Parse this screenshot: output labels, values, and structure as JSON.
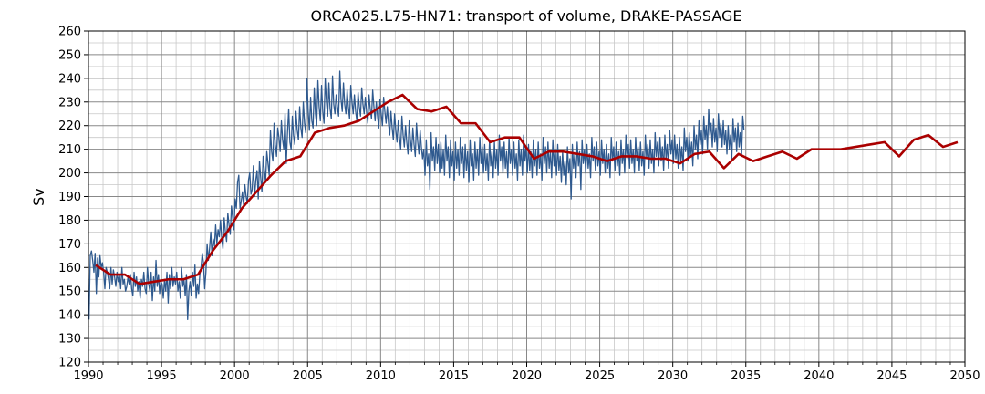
{
  "chart_data": {
    "type": "line",
    "title": "ORCA025.L75-HN71: transport of volume, DRAKE-PASSAGE",
    "xlabel": "",
    "ylabel": "Sv",
    "xlim": [
      1990,
      2050
    ],
    "ylim": [
      120,
      260
    ],
    "xticks": [
      1990,
      1995,
      2000,
      2005,
      2010,
      2015,
      2020,
      2025,
      2030,
      2035,
      2040,
      2045,
      2050
    ],
    "yticks": [
      120,
      130,
      140,
      150,
      160,
      170,
      180,
      190,
      200,
      210,
      220,
      230,
      240,
      250,
      260
    ],
    "grid": true,
    "legend": "none",
    "colors": {
      "monthly": "#2f5a8f",
      "annual": "#aa0000",
      "grid_major": "#888888",
      "grid_minor": "#c8c8c8"
    },
    "series": [
      {
        "style": "thin",
        "x_start": 1990.04,
        "x_step": 0.0833333,
        "values": [
          138,
          165,
          167,
          163,
          158,
          166,
          149,
          164,
          156,
          165,
          160,
          162,
          158,
          151,
          160,
          158,
          155,
          151,
          160,
          153,
          159,
          156,
          152,
          158,
          154,
          157,
          151,
          160,
          153,
          155,
          150,
          152,
          156,
          153,
          157,
          151,
          148,
          158,
          152,
          156,
          150,
          154,
          147,
          155,
          152,
          158,
          151,
          149,
          160,
          153,
          150,
          158,
          146,
          156,
          150,
          163,
          152,
          157,
          149,
          154,
          153,
          147,
          155,
          150,
          158,
          145,
          157,
          151,
          160,
          152,
          156,
          153,
          158,
          150,
          154,
          147,
          160,
          152,
          155,
          148,
          157,
          138,
          150,
          154,
          148,
          158,
          152,
          161,
          147,
          153,
          149,
          157,
          160,
          166,
          162,
          151,
          158,
          170,
          163,
          168,
          175,
          165,
          172,
          169,
          178,
          170,
          176,
          173,
          180,
          172,
          168,
          181,
          175,
          171,
          183,
          178,
          174,
          186,
          181,
          176,
          189,
          185,
          196,
          199,
          185,
          188,
          192,
          186,
          195,
          190,
          187,
          197,
          200,
          191,
          193,
          203,
          190,
          197,
          201,
          189,
          205,
          198,
          192,
          207,
          201,
          196,
          209,
          204,
          199,
          218,
          209,
          205,
          221,
          212,
          207,
          219,
          215,
          209,
          222,
          214,
          210,
          225,
          204,
          217,
          227,
          213,
          210,
          224,
          216,
          212,
          226,
          218,
          214,
          228,
          219,
          215,
          230,
          221,
          217,
          240,
          226,
          218,
          232,
          222,
          219,
          236,
          225,
          220,
          239,
          228,
          222,
          237,
          226,
          221,
          240,
          230,
          224,
          238,
          227,
          223,
          241,
          229,
          225,
          233,
          228,
          224,
          243,
          231,
          226,
          238,
          229,
          225,
          235,
          228,
          223,
          237,
          230,
          225,
          233,
          226,
          222,
          234,
          228,
          224,
          236,
          229,
          225,
          232,
          226,
          221,
          233,
          227,
          223,
          235,
          228,
          222,
          230,
          224,
          219,
          231,
          225,
          220,
          232,
          226,
          221,
          228,
          221,
          216,
          226,
          219,
          214,
          225,
          218,
          213,
          222,
          215,
          210,
          224,
          216,
          211,
          220,
          213,
          208,
          222,
          214,
          209,
          219,
          212,
          207,
          221,
          213,
          208,
          218,
          211,
          206,
          210,
          199,
          214,
          203,
          208,
          193,
          217,
          205,
          211,
          201,
          215,
          204,
          212,
          200,
          213,
          202,
          210,
          199,
          216,
          205,
          211,
          198,
          214,
          203,
          209,
          197,
          213,
          202,
          210,
          199,
          215,
          204,
          211,
          198,
          212,
          201,
          209,
          196,
          214,
          203,
          208,
          197,
          213,
          202,
          210,
          199,
          215,
          204,
          211,
          200,
          212,
          201,
          208,
          197,
          214,
          203,
          209,
          198,
          213,
          202,
          210,
          199,
          216,
          205,
          211,
          200,
          213,
          202,
          209,
          198,
          215,
          204,
          210,
          199,
          213,
          202,
          208,
          197,
          214,
          203,
          210,
          199,
          216,
          205,
          211,
          200,
          212,
          201,
          209,
          198,
          214,
          203,
          210,
          199,
          213,
          202,
          208,
          197,
          215,
          204,
          211,
          200,
          213,
          202,
          209,
          198,
          214,
          203,
          210,
          199,
          212,
          201,
          207,
          196,
          209,
          199,
          205,
          195,
          211,
          200,
          206,
          189,
          212,
          202,
          208,
          198,
          213,
          203,
          209,
          193,
          214,
          204,
          210,
          200,
          212,
          202,
          208,
          198,
          215,
          205,
          211,
          201,
          213,
          203,
          209,
          199,
          214,
          204,
          210,
          200,
          212,
          202,
          208,
          198,
          215,
          205,
          211,
          201,
          213,
          203,
          209,
          199,
          214,
          204,
          210,
          200,
          216,
          206,
          212,
          202,
          214,
          204,
          210,
          200,
          215,
          205,
          211,
          201,
          213,
          203,
          209,
          199,
          216,
          206,
          212,
          202,
          214,
          204,
          210,
          200,
          217,
          207,
          213,
          203,
          215,
          205,
          211,
          201,
          216,
          206,
          212,
          202,
          218,
          208,
          214,
          204,
          216,
          206,
          212,
          202,
          215,
          205,
          211,
          201,
          219,
          209,
          215,
          205,
          217,
          207,
          213,
          203,
          220,
          210,
          216,
          206,
          222,
          212,
          218,
          208,
          224,
          214,
          220,
          210,
          227,
          216,
          221,
          211,
          223,
          213,
          219,
          209,
          225,
          215,
          221,
          211,
          222,
          212,
          218,
          208,
          220,
          210,
          216,
          206,
          223,
          213,
          219,
          209,
          221,
          211,
          217,
          207,
          224,
          218
        ]
      },
      {
        "style": "thick",
        "x": [
          1990.5,
          1991.5,
          1992.5,
          1993.5,
          1994.5,
          1995.5,
          1996.5,
          1997.5,
          1998.5,
          1999.5,
          2000.5,
          2001.5,
          2002.5,
          2003.5,
          2004.5,
          2005.5,
          2006.5,
          2007.5,
          2008.5,
          2009.5,
          2010.5,
          2011.5,
          2012.5,
          2013.5,
          2014.5,
          2015.5,
          2016.5,
          2017.5,
          2018.5,
          2019.5,
          2020.5,
          2021.5,
          2022.5,
          2023.5,
          2024.5,
          2025.5,
          2026.5,
          2027.5,
          2028.5,
          2029.5,
          2030.5,
          2031.5,
          2032.5,
          2033.5,
          2034.5,
          2035.5,
          2036.5,
          2037.5,
          2038.5,
          2039.5,
          2040.5,
          2041.5,
          2042.5,
          2043.5,
          2044.5,
          2045.5,
          2046.5,
          2047.5,
          2048.5,
          2049.5
        ],
        "values": [
          161,
          157,
          157,
          153,
          154,
          155,
          155,
          157,
          167,
          175,
          185,
          192,
          199,
          205,
          207,
          217,
          219,
          220,
          222,
          226,
          230,
          233,
          227,
          226,
          228,
          221,
          221,
          213,
          215,
          215,
          206,
          209,
          209,
          208,
          207,
          205,
          207,
          207,
          206,
          206,
          204,
          208,
          209,
          202,
          208,
          205,
          207,
          209,
          206,
          210,
          210,
          210,
          211,
          212,
          213,
          207,
          214,
          216,
          211,
          213
        ]
      }
    ]
  }
}
